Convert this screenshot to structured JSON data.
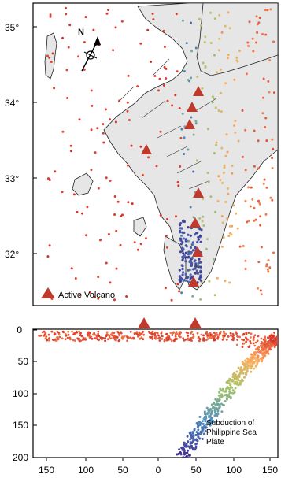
{
  "map": {
    "lat_ticks": [
      "35°",
      "34°",
      "33°",
      "32°"
    ],
    "north_label": "N",
    "legend": {
      "label": "Active Volcano",
      "symbol_color": "#c0392b"
    },
    "land_color": "#e6e6e6",
    "volcano_color": "#c0392b"
  },
  "section": {
    "y_ticks": [
      "0",
      "50",
      "100",
      "150",
      "200"
    ],
    "x_ticks": [
      "150",
      "100",
      "50",
      "0",
      "50",
      "100",
      "150"
    ],
    "annotation": [
      "Subduction of",
      "Philippine Sea",
      "Plate"
    ]
  },
  "colors": {
    "shallow": "#d73027",
    "mid": "#fdae61",
    "green": "#a6c46a",
    "blue": "#4f8fc0",
    "deep": "#3f2a8c"
  }
}
